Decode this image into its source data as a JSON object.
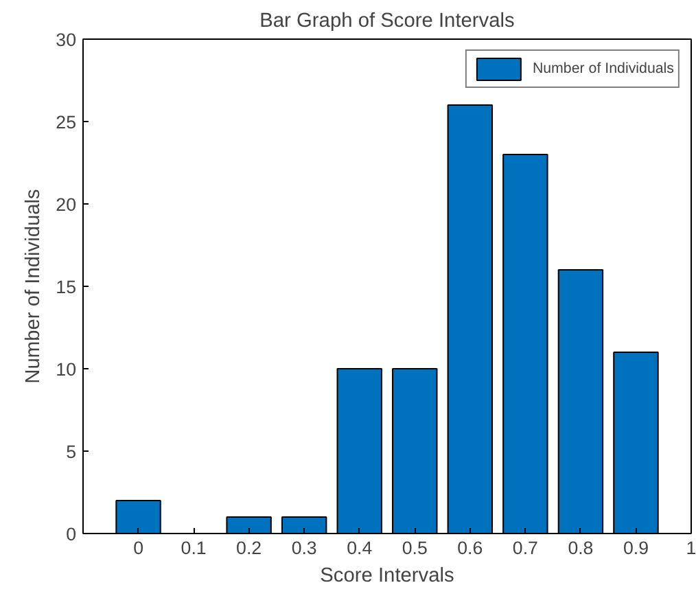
{
  "chart_data": {
    "type": "bar",
    "title": "Bar Graph of Score Intervals",
    "xlabel": "Score Intervals",
    "ylabel": "Number of Individuals",
    "x": [
      0,
      0.1,
      0.2,
      0.3,
      0.4,
      0.5,
      0.6,
      0.7,
      0.8,
      0.9
    ],
    "series": [
      {
        "name": "Number of Individuals",
        "color": "#0072bd",
        "values": [
          2,
          0,
          1,
          1,
          10,
          10,
          26,
          23,
          16,
          11
        ]
      }
    ],
    "xlim": [
      -0.1,
      1
    ],
    "xticks": [
      0,
      0.1,
      0.2,
      0.3,
      0.4,
      0.5,
      0.6,
      0.7,
      0.8,
      0.9,
      1
    ],
    "ylim": [
      0,
      30
    ],
    "yticks": [
      0,
      5,
      10,
      15,
      20,
      25,
      30
    ],
    "grid": false,
    "legend": "top right"
  }
}
